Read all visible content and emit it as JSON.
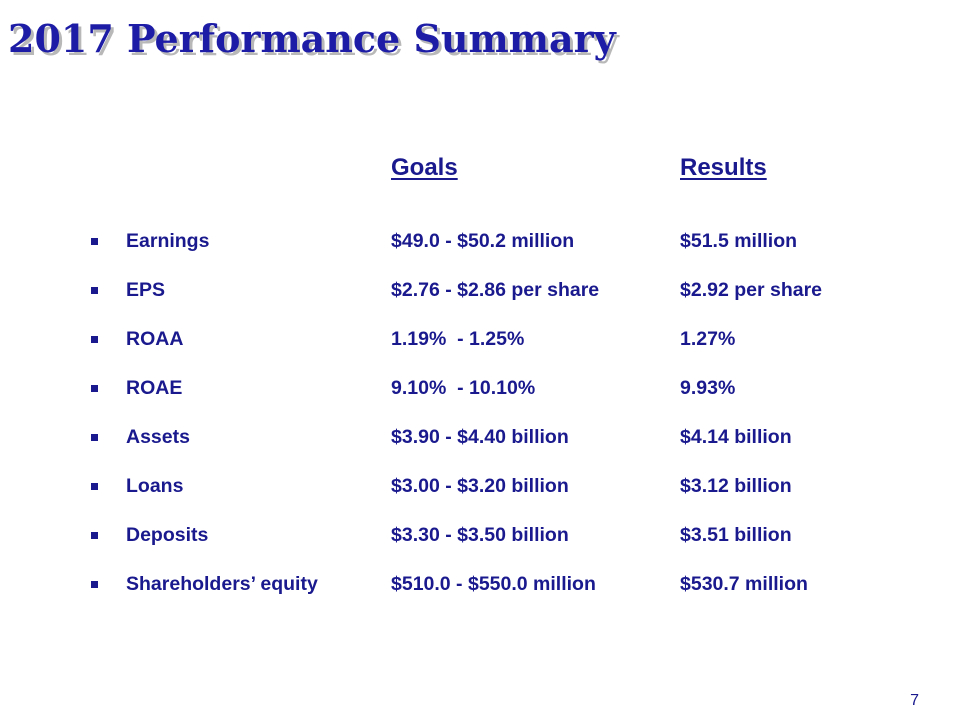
{
  "slide": {
    "title": "2017 Performance Summary",
    "page_number": "7"
  },
  "table": {
    "headers": {
      "goals": "Goals",
      "results": "Results"
    },
    "rows": [
      {
        "metric": "Earnings",
        "goal": "$49.0 - $50.2 million",
        "result": "$51.5 million"
      },
      {
        "metric": "EPS",
        "goal": "$2.76 - $2.86 per share",
        "result": "$2.92 per share"
      },
      {
        "metric": "ROAA",
        "goal": "1.19%  - 1.25%",
        "result": "1.27%"
      },
      {
        "metric": "ROAE",
        "goal": "9.10%  - 10.10%",
        "result": "9.93%"
      },
      {
        "metric": "Assets",
        "goal": "$3.90 - $4.40 billion",
        "result": "$4.14 billion"
      },
      {
        "metric": "Loans",
        "goal": "$3.00 - $3.20 billion",
        "result": "$3.12 billion"
      },
      {
        "metric": "Deposits",
        "goal": "$3.30 - $3.50 billion",
        "result": "$3.51 billion"
      },
      {
        "metric": "Shareholders’ equity",
        "goal": "$510.0 - $550.0 million",
        "result": "$530.7 million"
      }
    ]
  },
  "colors": {
    "title": "#1c1ca6",
    "text": "#1a1a8e",
    "title_shadow": "#b8b8b8",
    "background": "#ffffff"
  }
}
